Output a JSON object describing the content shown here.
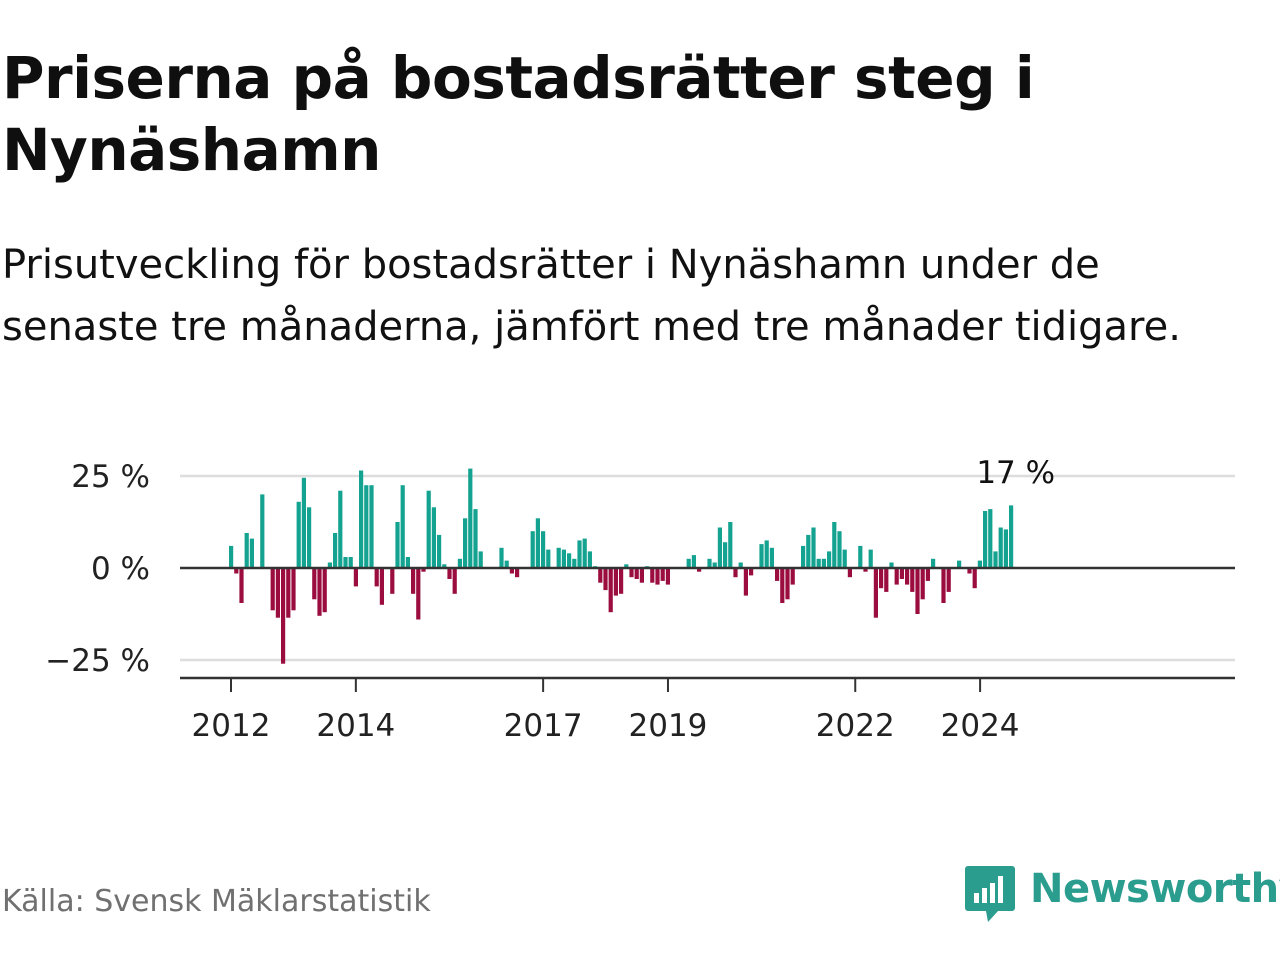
{
  "title": "Priserna på bostadsrätter steg i Nynäshamn",
  "subtitle": "Prisutveckling för bostadsrätter i Nynäshamn under de senaste tre månaderna, jämfört med tre månader tidigare.",
  "source": "Källa: Svensk Mäklarstatistik",
  "brand": {
    "name": "Newsworthy",
    "icon": "newsworthy-logo-icon"
  },
  "colors": {
    "positive": "#14a391",
    "negative": "#9b0d3e",
    "grid": "#dddddd",
    "axis": "#333333",
    "brand": "#2a9d8f"
  },
  "chart_data": {
    "type": "bar",
    "title": "Priserna på bostadsrätter steg i Nynäshamn",
    "xlabel": "",
    "ylabel": "",
    "ylim": [
      -30,
      30
    ],
    "y_ticks": [
      25,
      0,
      -25
    ],
    "y_tick_labels": [
      "25 %",
      "0 %",
      "−25 %"
    ],
    "x_ticks": [
      2012,
      2014,
      2017,
      2019,
      2022,
      2024
    ],
    "x_tick_labels": [
      "2012",
      "2014",
      "2017",
      "2019",
      "2022",
      "2024"
    ],
    "x_start": 2012.0,
    "x_step": 0.0833,
    "grid": true,
    "annotation": {
      "label": "17 %",
      "value": 17
    },
    "series": [
      {
        "name": "Prisutveckling (%)",
        "values": [
          6,
          -1.5,
          -9.5,
          9.5,
          8,
          0,
          20,
          0,
          -11.5,
          -13.5,
          -26,
          -13.5,
          -11.5,
          18,
          24.5,
          16.5,
          -8.5,
          -13,
          -12,
          1.5,
          9.5,
          21,
          3,
          3,
          -5,
          26.5,
          22.5,
          22.5,
          -5,
          -10,
          0,
          -7,
          12.5,
          22.5,
          3,
          -7,
          -14,
          -1,
          21,
          16.5,
          9,
          1,
          -3,
          -7,
          2.5,
          13.5,
          27,
          16,
          4.5,
          0,
          0,
          0,
          5.5,
          2,
          -1.5,
          -2.5,
          0,
          0,
          10,
          13.5,
          10,
          5,
          0,
          5.5,
          5,
          4,
          2.5,
          7.5,
          8,
          4.5,
          0.5,
          -4,
          -6,
          -12,
          -7.5,
          -7,
          1,
          -2.5,
          -3,
          -4,
          0.5,
          -4,
          -4.5,
          -3.5,
          -4.5,
          0,
          0,
          0,
          2.5,
          3.5,
          -1,
          0,
          2.5,
          1.5,
          11,
          7,
          12.5,
          -2.5,
          1.5,
          -7.5,
          -2,
          0,
          6.5,
          7.5,
          5.5,
          -3.5,
          -9.5,
          -8.5,
          -4.5,
          0,
          6,
          9,
          11,
          2.5,
          2.5,
          4.5,
          12.5,
          10,
          5,
          -2.5,
          0,
          6,
          -1,
          5,
          -13.5,
          -5.5,
          -6.5,
          1.5,
          -4.5,
          -3,
          -4.5,
          -6.5,
          -12.5,
          -8.5,
          -3.5,
          2.5,
          0,
          -9.5,
          -6.5,
          0,
          2,
          0,
          -1.5,
          -5.5,
          2,
          15.5,
          16,
          4.5,
          11,
          10.5,
          17
        ]
      }
    ]
  }
}
